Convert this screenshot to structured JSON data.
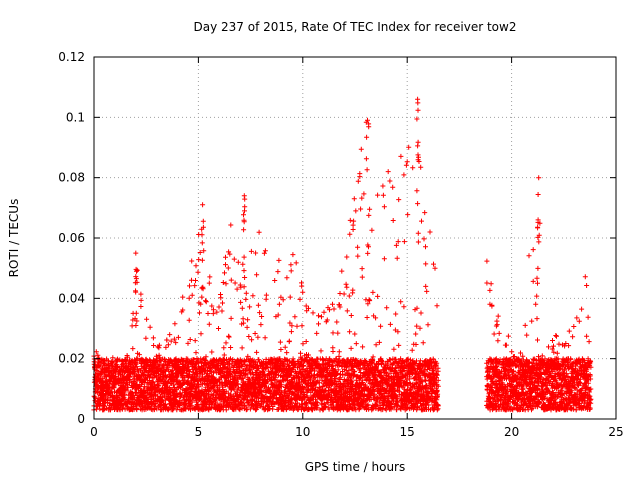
{
  "chart_data": {
    "type": "scatter",
    "title": "Day 237 of 2015, Rate Of TEC Index for receiver tow2",
    "xlabel": "GPS time / hours",
    "ylabel": "ROTI / TECUs",
    "xlim": [
      0,
      25
    ],
    "ylim": [
      0,
      0.12
    ],
    "x_ticks": [
      0,
      5,
      10,
      15,
      20,
      25
    ],
    "x_tick_labels": [
      "0",
      "5",
      "10",
      "15",
      "20",
      "25"
    ],
    "y_ticks": [
      0,
      0.02,
      0.04,
      0.06,
      0.08,
      0.1,
      0.12
    ],
    "y_tick_labels": [
      "0",
      "0.02",
      "0.04",
      "0.06",
      "0.08",
      "0.1",
      "0.12"
    ],
    "grid": true,
    "marker": "plus",
    "color": "#ff0000",
    "data_gap_hours": [
      16.6,
      18.7
    ],
    "series": [
      {
        "name": "ROTI",
        "envelope_hours": [
          0,
          0.5,
          1,
          1.5,
          2,
          2.5,
          3,
          3.5,
          4,
          4.5,
          5,
          5.5,
          6,
          6.5,
          7,
          7.5,
          8,
          8.5,
          9,
          9.5,
          10,
          10.5,
          11,
          11.5,
          12,
          12.5,
          13,
          13.5,
          14,
          14.5,
          15,
          15.5,
          16,
          16.5,
          18.8,
          19.5,
          20,
          20.5,
          21,
          21.5,
          22,
          22.5,
          23,
          23.5,
          23.8
        ],
        "envelope_upper": [
          0.026,
          0.024,
          0.022,
          0.022,
          0.055,
          0.035,
          0.025,
          0.03,
          0.035,
          0.046,
          0.07,
          0.05,
          0.045,
          0.065,
          0.074,
          0.058,
          0.063,
          0.048,
          0.057,
          0.06,
          0.045,
          0.038,
          0.043,
          0.04,
          0.058,
          0.075,
          0.099,
          0.073,
          0.085,
          0.08,
          0.106,
          0.09,
          0.068,
          0.05,
          0.053,
          0.03,
          0.028,
          0.025,
          0.08,
          0.028,
          0.028,
          0.03,
          0.035,
          0.05,
          0.036
        ],
        "baseline_range": [
          0.003,
          0.02
        ],
        "peaks": [
          {
            "x": 2.0,
            "y": 0.055
          },
          {
            "x": 5.2,
            "y": 0.071
          },
          {
            "x": 7.2,
            "y": 0.074
          },
          {
            "x": 13.1,
            "y": 0.099
          },
          {
            "x": 15.5,
            "y": 0.106
          },
          {
            "x": 21.3,
            "y": 0.08
          }
        ]
      }
    ]
  }
}
